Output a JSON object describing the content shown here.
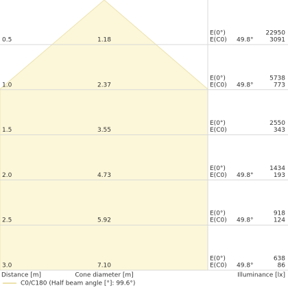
{
  "labels": {
    "e0": "E(0°)",
    "ec0": "E(C0)"
  },
  "rows": [
    {
      "distance": "0.5",
      "diameter": "1.18",
      "angle": "49.8°",
      "e0": "22950",
      "ec0": "3091"
    },
    {
      "distance": "1.0",
      "diameter": "2.37",
      "angle": "49.8°",
      "e0": "5738",
      "ec0": "773"
    },
    {
      "distance": "1.5",
      "diameter": "3.55",
      "angle": null,
      "e0": "2550",
      "ec0": "343"
    },
    {
      "distance": "2.0",
      "diameter": "4.73",
      "angle": "49.8°",
      "e0": "1434",
      "ec0": "193"
    },
    {
      "distance": "2.5",
      "diameter": "5.92",
      "angle": "49.8°",
      "e0": "918",
      "ec0": "124"
    },
    {
      "distance": "3.0",
      "diameter": "7.10",
      "angle": "49.8°",
      "e0": "638",
      "ec0": "86"
    }
  ],
  "footer": {
    "distance": "Distance [m]",
    "diameter": "Cone diameter [m]",
    "illuminance": "Illuminance [lx]"
  },
  "legend": "C0/C180 (Half beam angle [°]: 99.6°)"
}
